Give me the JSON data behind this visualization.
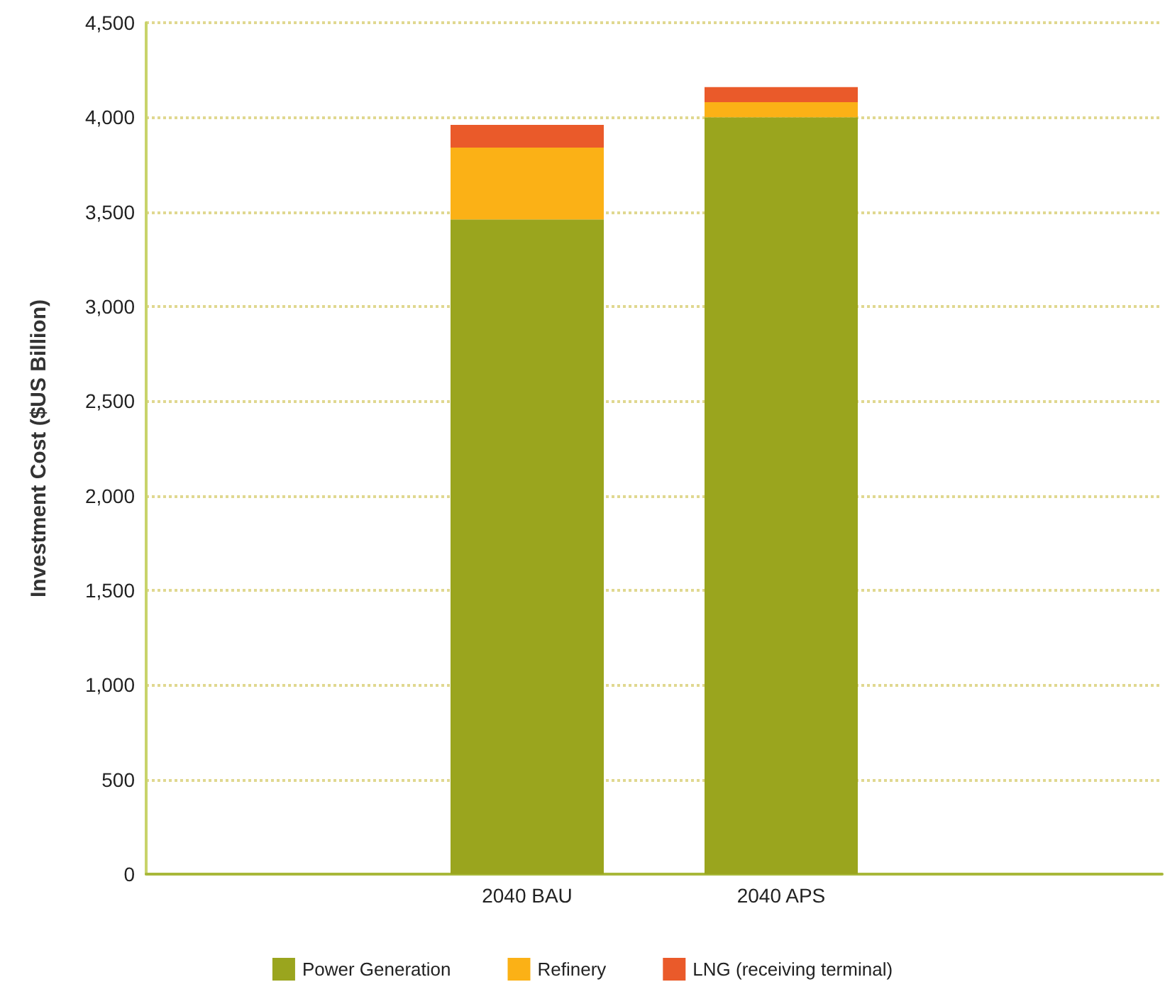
{
  "chart_data": {
    "type": "bar",
    "stacked": true,
    "ylabel": "Investment Cost ($US Billion)",
    "categories": [
      null,
      "2040 BAU",
      "2040 APS",
      null
    ],
    "series": [
      {
        "name": "Power Generation",
        "color": "#9aa51e",
        "values": [
          null,
          3460,
          4000,
          null
        ]
      },
      {
        "name": "Refinery",
        "color": "#fbb116",
        "values": [
          null,
          380,
          80,
          null
        ]
      },
      {
        "name": "LNG (receiving terminal)",
        "color": "#ea5a2a",
        "values": [
          null,
          120,
          80,
          null
        ]
      }
    ],
    "ylim": [
      0,
      4500
    ],
    "yticks": [
      {
        "value": 0,
        "label": "0"
      },
      {
        "value": 500,
        "label": "500"
      },
      {
        "value": 1000,
        "label": "1,000"
      },
      {
        "value": 1500,
        "label": "1,500"
      },
      {
        "value": 2000,
        "label": "2,000"
      },
      {
        "value": 2500,
        "label": "2,500"
      },
      {
        "value": 3000,
        "label": "3,000"
      },
      {
        "value": 3500,
        "label": "3,500"
      },
      {
        "value": 4000,
        "label": "4,000"
      },
      {
        "value": 4500,
        "label": "4,500"
      }
    ],
    "grid": "y",
    "legend": "bottom"
  }
}
